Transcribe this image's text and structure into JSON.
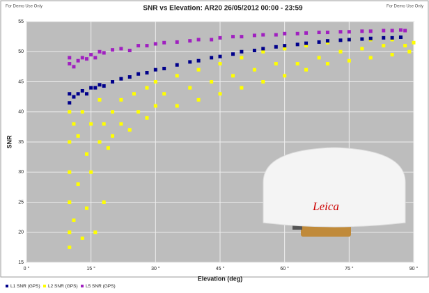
{
  "chart_data": {
    "type": "scatter",
    "title": "SNR vs Elevation: AR20 26/05/2012 00:00 - 23:59",
    "watermarks": [
      "For Demo Use Only",
      "For Demo Use Only"
    ],
    "x_label": "Elevation (deg)",
    "y_label": "SNR",
    "annotation": "Leica",
    "xlim": [
      0,
      90
    ],
    "ylim": [
      15,
      55
    ],
    "xticks": [
      {
        "value": 0,
        "label": "0 °"
      },
      {
        "value": 15,
        "label": "15 °"
      },
      {
        "value": 30,
        "label": "30 °"
      },
      {
        "value": 45,
        "label": "45 °"
      },
      {
        "value": 60,
        "label": "60 °"
      },
      {
        "value": 75,
        "label": "75 °"
      },
      {
        "value": 90,
        "label": "90 °"
      }
    ],
    "yticks": [
      15,
      20,
      25,
      30,
      35,
      40,
      45,
      50,
      55
    ],
    "grid": true,
    "legend": "bottom",
    "series": [
      {
        "name": "L2 SNR (GPS)",
        "color": "#ffff00",
        "x": [
          10,
          10,
          10,
          10,
          10,
          10,
          11,
          11,
          12,
          12,
          13,
          13,
          14,
          14,
          15,
          15,
          16,
          17,
          17,
          18,
          18,
          19,
          20,
          20,
          22,
          22,
          24,
          25,
          26,
          28,
          28,
          30,
          30,
          32,
          35,
          35,
          38,
          40,
          40,
          43,
          45,
          45,
          48,
          50,
          50,
          53,
          55,
          55,
          58,
          60,
          60,
          63,
          65,
          65,
          68,
          70,
          70,
          73,
          75,
          75,
          78,
          80,
          80,
          83,
          85,
          85,
          88,
          89,
          90
        ],
        "values": [
          40,
          35,
          30,
          25,
          20,
          17.5,
          38,
          22,
          36,
          28,
          19,
          40,
          33,
          24,
          38,
          30,
          20,
          35,
          42,
          25,
          38,
          34,
          40,
          36,
          42,
          38,
          37,
          43,
          40,
          44,
          39,
          45,
          41,
          43,
          46,
          41,
          44,
          47,
          42,
          45,
          48,
          43,
          46,
          49,
          44,
          47,
          50,
          45,
          48,
          50.5,
          46,
          48,
          51,
          47,
          49,
          51.5,
          48,
          50,
          52,
          48.5,
          50.5,
          52,
          49,
          51,
          52,
          49.5,
          51,
          50,
          51.5
        ]
      },
      {
        "name": "L1 SNR (GPS)",
        "color": "#00008b",
        "x": [
          10,
          10,
          11,
          12,
          13,
          14,
          15,
          16,
          17,
          18,
          20,
          22,
          24,
          26,
          28,
          30,
          32,
          35,
          38,
          40,
          43,
          45,
          48,
          50,
          53,
          55,
          58,
          60,
          63,
          65,
          68,
          70,
          73,
          75,
          78,
          80,
          83,
          85,
          87
        ],
        "values": [
          41.5,
          43,
          42.5,
          43,
          43.5,
          43,
          44,
          44,
          44.5,
          44.3,
          45,
          45.5,
          45.8,
          46.3,
          46.5,
          47,
          47.2,
          47.8,
          48.3,
          48.5,
          49,
          49.2,
          49.6,
          50,
          50.2,
          50.5,
          50.8,
          51,
          51.2,
          51.4,
          51.6,
          51.8,
          51.9,
          52,
          52.1,
          52.2,
          52.3,
          52.3,
          52.4
        ]
      },
      {
        "name": "L5 SNR (GPS)",
        "color": "#a020c0",
        "x": [
          10,
          10,
          11,
          12,
          13,
          14,
          15,
          16,
          17,
          18,
          20,
          22,
          24,
          26,
          28,
          30,
          32,
          35,
          38,
          40,
          43,
          45,
          48,
          50,
          53,
          55,
          58,
          60,
          63,
          65,
          68,
          70,
          73,
          75,
          78,
          80,
          83,
          85,
          87,
          88
        ],
        "values": [
          48,
          49,
          47.5,
          48.5,
          49,
          48.8,
          49.5,
          49,
          50,
          49.8,
          50.3,
          50.5,
          50.2,
          51,
          51,
          51.3,
          51.5,
          51.6,
          51.8,
          52,
          52,
          52.3,
          52.5,
          52.5,
          52.7,
          52.8,
          52.8,
          53,
          53,
          53.1,
          53.2,
          53.2,
          53.3,
          53.3,
          53.4,
          53.4,
          53.5,
          53.5,
          53.6,
          53.5
        ]
      }
    ]
  }
}
